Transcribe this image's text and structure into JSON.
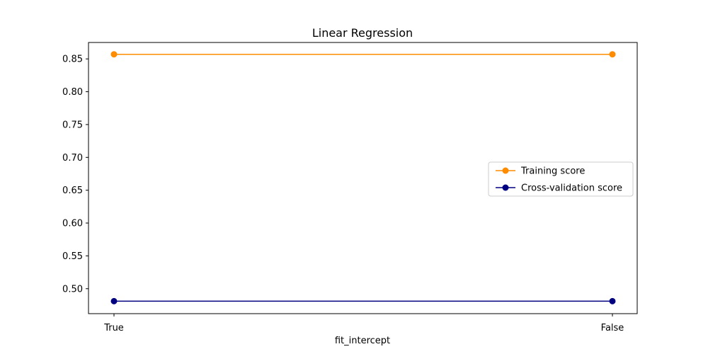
{
  "chart_data": {
    "type": "line",
    "title": "Linear Regression",
    "xlabel": "fit_intercept",
    "ylabel": "",
    "categories": [
      "True",
      "False"
    ],
    "ylim": [
      0.462,
      0.875
    ],
    "yticks": [
      "0.50",
      "0.55",
      "0.60",
      "0.65",
      "0.70",
      "0.75",
      "0.80",
      "0.85"
    ],
    "ytick_values": [
      0.5,
      0.55,
      0.6,
      0.65,
      0.7,
      0.75,
      0.8,
      0.85
    ],
    "series": [
      {
        "name": "Training score",
        "values": [
          0.857,
          0.857
        ],
        "color": "#ff8c00"
      },
      {
        "name": "Cross-validation score",
        "values": [
          0.481,
          0.481
        ],
        "color": "#000080"
      }
    ],
    "legend": "center-right",
    "grid": false
  }
}
